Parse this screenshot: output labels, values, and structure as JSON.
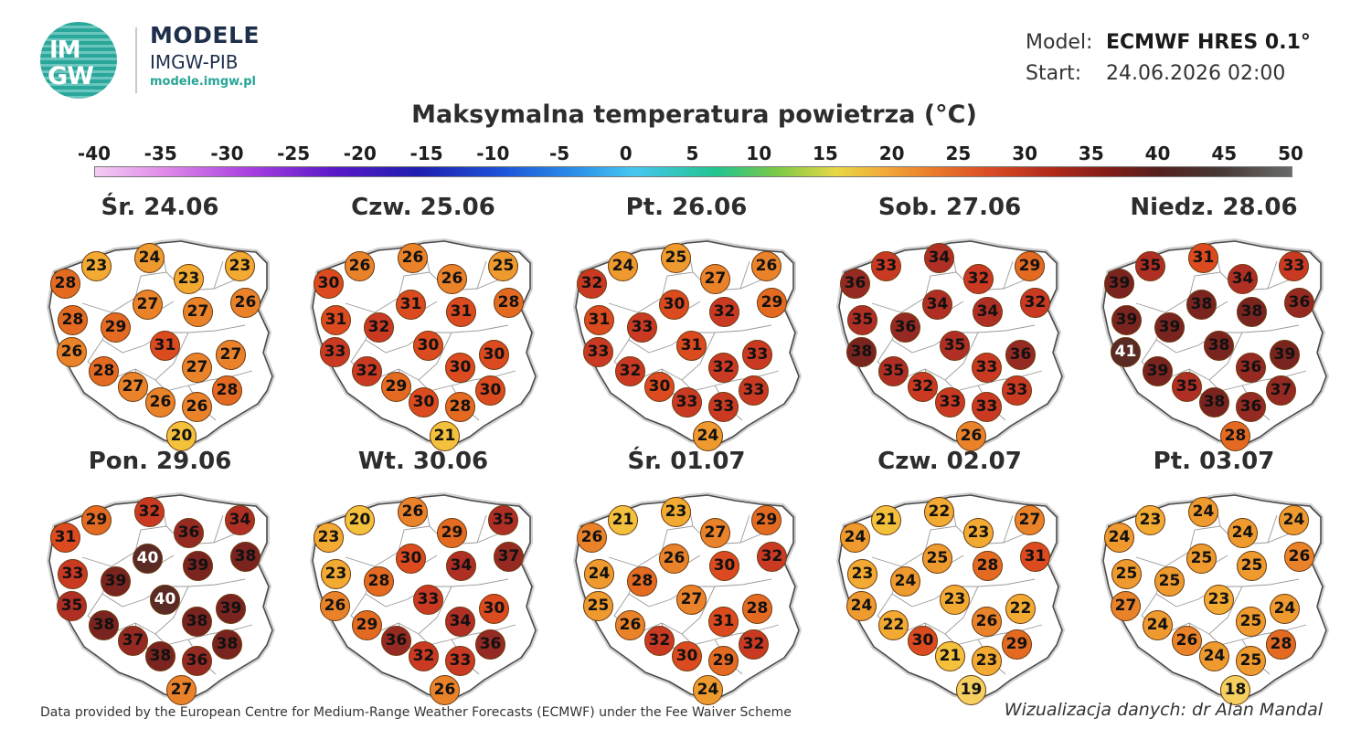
{
  "logo": {
    "circle_line1": "IM",
    "circle_line2": "GW",
    "title": "MODELE",
    "subtitle": "IMGW-PIB",
    "url": "modele.imgw.pl"
  },
  "meta": {
    "model_label": "Model:",
    "model_value": "ECMWF HRES 0.1°",
    "start_label": "Start:",
    "start_value": "24.06.2026 02:00"
  },
  "title": "Maksymalna temperatura powietrza (°C)",
  "scale": {
    "ticks": [
      "-40",
      "-35",
      "-30",
      "-25",
      "-20",
      "-15",
      "-10",
      "-5",
      "0",
      "5",
      "10",
      "15",
      "20",
      "25",
      "30",
      "35",
      "40",
      "45",
      "50"
    ]
  },
  "days": [
    {
      "label": "Śr. 24.06",
      "values": [
        28,
        23,
        24,
        23,
        23,
        26,
        27,
        28,
        29,
        27,
        26,
        31,
        28,
        27,
        27,
        27,
        26,
        26,
        28,
        20
      ]
    },
    {
      "label": "Czw. 25.06",
      "values": [
        30,
        26,
        26,
        26,
        25,
        28,
        31,
        31,
        32,
        31,
        33,
        30,
        32,
        30,
        30,
        29,
        30,
        28,
        30,
        21
      ]
    },
    {
      "label": "Pt. 26.06",
      "values": [
        32,
        24,
        25,
        27,
        26,
        29,
        30,
        31,
        33,
        32,
        33,
        31,
        32,
        32,
        33,
        30,
        33,
        33,
        33,
        24
      ]
    },
    {
      "label": "Sob. 27.06",
      "values": [
        36,
        33,
        34,
        32,
        29,
        32,
        34,
        35,
        36,
        34,
        38,
        35,
        35,
        33,
        36,
        32,
        33,
        33,
        33,
        26
      ]
    },
    {
      "label": "Niedz. 28.06",
      "values": [
        39,
        35,
        31,
        34,
        33,
        36,
        38,
        39,
        39,
        38,
        41,
        38,
        39,
        36,
        39,
        35,
        38,
        36,
        37,
        28
      ]
    },
    {
      "label": "Pon. 29.06",
      "values": [
        31,
        29,
        32,
        36,
        34,
        38,
        40,
        33,
        39,
        39,
        35,
        40,
        38,
        38,
        39,
        37,
        38,
        36,
        38,
        27
      ]
    },
    {
      "label": "Wt. 30.06",
      "values": [
        23,
        20,
        26,
        29,
        35,
        37,
        30,
        23,
        28,
        34,
        26,
        33,
        29,
        34,
        30,
        36,
        32,
        33,
        36,
        26
      ]
    },
    {
      "label": "Śr. 01.07",
      "values": [
        26,
        21,
        23,
        27,
        29,
        32,
        26,
        24,
        28,
        30,
        25,
        27,
        26,
        31,
        28,
        32,
        30,
        29,
        32,
        24
      ]
    },
    {
      "label": "Czw. 02.07",
      "values": [
        24,
        21,
        22,
        23,
        27,
        31,
        25,
        23,
        24,
        28,
        24,
        23,
        22,
        26,
        22,
        30,
        21,
        23,
        29,
        19
      ]
    },
    {
      "label": "Pt. 03.07",
      "values": [
        24,
        23,
        24,
        24,
        24,
        26,
        25,
        25,
        25,
        25,
        27,
        23,
        24,
        25,
        24,
        26,
        24,
        25,
        28,
        18
      ]
    }
  ],
  "color_scale": [
    {
      "t": 18,
      "color": "#f5d060"
    },
    {
      "t": 20,
      "color": "#f4c13c"
    },
    {
      "t": 22,
      "color": "#f2aa32"
    },
    {
      "t": 24,
      "color": "#ee9a2e"
    },
    {
      "t": 26,
      "color": "#ea822a"
    },
    {
      "t": 28,
      "color": "#e46a22"
    },
    {
      "t": 30,
      "color": "#dc4a1f"
    },
    {
      "t": 32,
      "color": "#ca3a23"
    },
    {
      "t": 34,
      "color": "#b02f24"
    },
    {
      "t": 36,
      "color": "#952a22"
    },
    {
      "t": 38,
      "color": "#7a2420"
    },
    {
      "t": 40,
      "color": "#5a2a24"
    },
    {
      "t": 42,
      "color": "#4a3a30"
    }
  ],
  "footer": {
    "left": "Data provided by the European Centre for Medium-Range Weather Forecasts (ECMWF) under the Fee Waiver Scheme",
    "right": "Wizualizacja danych: dr Alan Mandal"
  }
}
